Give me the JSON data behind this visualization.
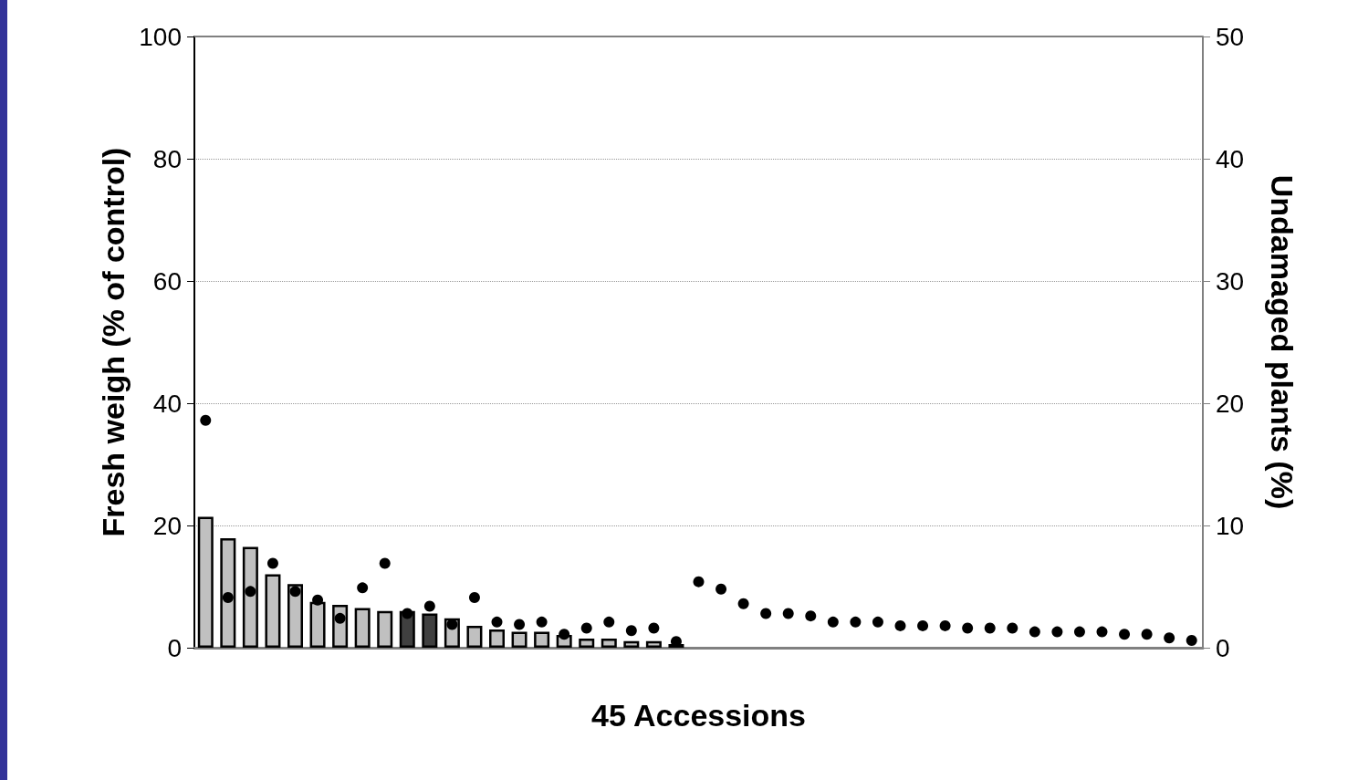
{
  "chart_data": {
    "type": "bar",
    "xlabel": "45 Accessions",
    "ylabel": "Fresh weigh (% of control)",
    "y2label": "Undamaged plants (%)",
    "categories": [
      null,
      null,
      null,
      null,
      null,
      null,
      null,
      null,
      null,
      null,
      null,
      null,
      null,
      null,
      null,
      null,
      null,
      null,
      null,
      null,
      null,
      null,
      null,
      null,
      null,
      null,
      null,
      null,
      null,
      null,
      null,
      null,
      null,
      null,
      null,
      null,
      null,
      null,
      null,
      null,
      null,
      null,
      null,
      null,
      null
    ],
    "series": [
      {
        "color": "#c0c0c0",
        "colors": [
          "#c0c0c0",
          "#c0c0c0",
          "#c0c0c0",
          "#c0c0c0",
          "#c0c0c0",
          "#c0c0c0",
          "#c0c0c0",
          "#c0c0c0",
          "#c0c0c0",
          "#404040",
          "#404040",
          "#c0c0c0",
          "#c0c0c0",
          "#c0c0c0",
          "#c0c0c0",
          "#c0c0c0",
          "#c0c0c0",
          "#c0c0c0",
          "#c0c0c0",
          "#c0c0c0",
          "#c0c0c0",
          "#c0c0c0",
          null,
          null,
          null,
          null,
          null,
          null,
          null,
          null,
          null,
          null,
          null,
          null,
          null,
          null,
          null,
          null,
          null,
          null,
          null,
          null,
          null,
          null,
          null
        ],
        "values": [
          21.4,
          17.9,
          16.5,
          12.0,
          10.4,
          7.5,
          7.0,
          6.5,
          6.0,
          6.0,
          5.6,
          4.8,
          3.6,
          3.0,
          2.6,
          2.6,
          2.1,
          1.5,
          1.5,
          1.1,
          1.1,
          0.6,
          null,
          null,
          null,
          null,
          null,
          null,
          null,
          null,
          null,
          null,
          null,
          null,
          null,
          null,
          null,
          null,
          null,
          null,
          null,
          null,
          null,
          null,
          null
        ]
      },
      {
        "type": "scatter",
        "axis": "y2",
        "color": "#000000",
        "marker": "circle",
        "values": [
          18.6,
          4.1,
          4.6,
          6.9,
          4.6,
          3.9,
          2.4,
          4.9,
          6.9,
          2.8,
          3.4,
          1.9,
          4.1,
          2.1,
          1.9,
          2.1,
          1.1,
          1.6,
          2.1,
          1.4,
          1.6,
          0.5,
          5.4,
          4.8,
          3.6,
          2.8,
          2.8,
          2.6,
          2.1,
          2.1,
          2.1,
          1.8,
          1.8,
          1.8,
          1.6,
          1.6,
          1.6,
          1.3,
          1.3,
          1.3,
          1.3,
          1.1,
          1.1,
          0.8,
          0.6
        ]
      }
    ],
    "ylim": [
      0,
      100
    ],
    "yticks": [
      0,
      20,
      40,
      60,
      80,
      100
    ],
    "y2lim": [
      0,
      50
    ],
    "y2ticks": [
      0,
      10,
      20,
      30,
      40,
      50
    ],
    "grid": "y",
    "tick_labels": "y"
  }
}
